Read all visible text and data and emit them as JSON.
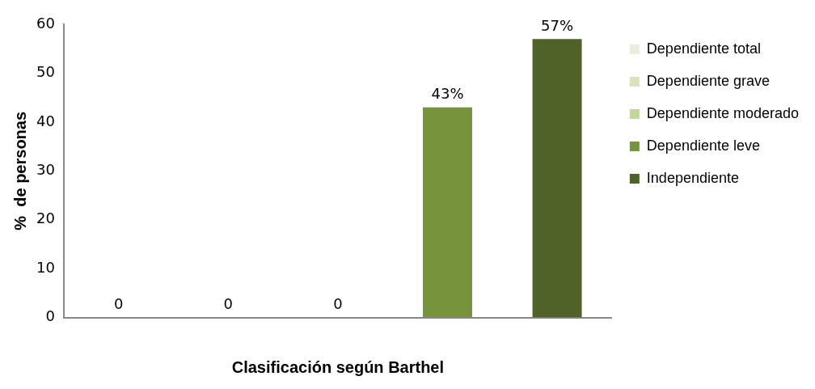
{
  "chart_data": {
    "type": "bar",
    "stacked": true,
    "xlabel": "Clasificación según Barthel",
    "ylabel": "%  de personas",
    "categories": [
      null,
      null,
      null,
      null,
      null
    ],
    "series": [
      {
        "name": "Dependiente total",
        "color": "#eaeedf",
        "values": [
          0,
          null,
          null,
          null,
          null
        ],
        "value_labels": [
          "0",
          null,
          null,
          null,
          null
        ]
      },
      {
        "name": "Dependiente grave",
        "color": "#d8e4bc",
        "values": [
          null,
          0,
          null,
          null,
          null
        ],
        "value_labels": [
          null,
          "0",
          null,
          null,
          null
        ]
      },
      {
        "name": "Dependiente moderado",
        "color": "#c3d69b",
        "values": [
          null,
          null,
          0,
          null,
          null
        ],
        "value_labels": [
          null,
          null,
          "0",
          null,
          null
        ]
      },
      {
        "name": "Dependiente leve",
        "color": "#77933c",
        "values": [
          null,
          null,
          null,
          43,
          null
        ],
        "value_labels": [
          null,
          null,
          null,
          "43%",
          null
        ]
      },
      {
        "name": "Independiente",
        "color": "#4f6228",
        "values": [
          null,
          null,
          null,
          null,
          57
        ],
        "value_labels": [
          null,
          null,
          null,
          null,
          "57%"
        ]
      }
    ],
    "ylim": [
      0,
      60
    ],
    "yticks": [
      0,
      10,
      20,
      30,
      40,
      50,
      60
    ],
    "grid": false,
    "legend": "right"
  }
}
